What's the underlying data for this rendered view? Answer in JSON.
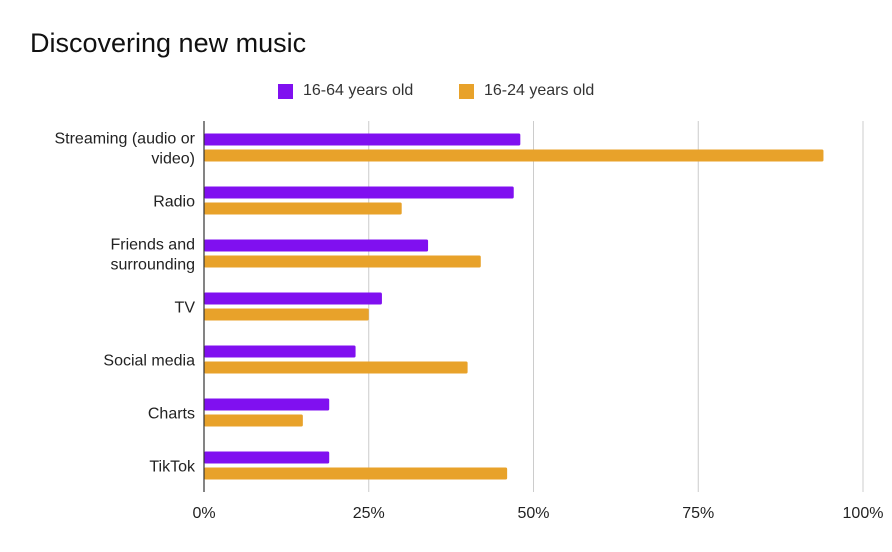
{
  "chart_data": {
    "type": "bar",
    "orientation": "horizontal",
    "title": "Discovering new music",
    "categories": [
      [
        "Streaming (audio or",
        "video)"
      ],
      [
        "Radio"
      ],
      [
        "Friends and",
        "surrounding"
      ],
      [
        "TV"
      ],
      [
        "Social media"
      ],
      [
        "Charts"
      ],
      [
        "TikTok"
      ]
    ],
    "series": [
      {
        "name": "16-64 years old",
        "color": "#8010f0",
        "values": [
          48,
          47,
          34,
          27,
          23,
          19,
          19
        ]
      },
      {
        "name": "16-24 years old",
        "color": "#e8a22a",
        "values": [
          94,
          30,
          42,
          25,
          40,
          15,
          46
        ]
      }
    ],
    "xlim": [
      0,
      100
    ],
    "x_ticks": [
      0,
      25,
      50,
      75,
      100
    ],
    "x_tick_labels": [
      "0%",
      "25%",
      "50%",
      "75%",
      "100%"
    ],
    "xlabel": "",
    "ylabel": "",
    "grid": true,
    "legend_position": "top"
  }
}
